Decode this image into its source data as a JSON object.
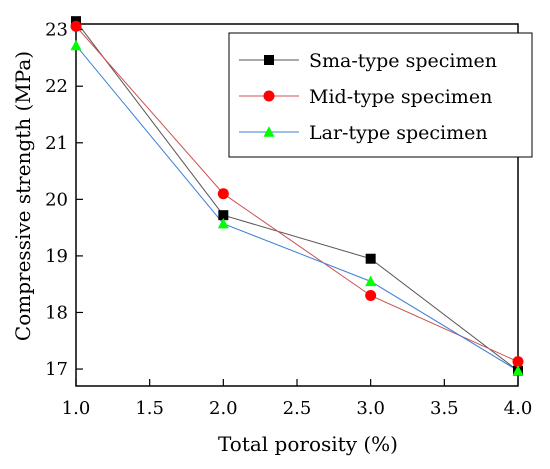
{
  "chart_data": {
    "type": "line",
    "title": "",
    "xlabel": "Total porosity (%)",
    "ylabel": "Compressive strength (MPa)",
    "xlim": [
      1.0,
      4.0
    ],
    "ylim": [
      16.7,
      23.1
    ],
    "xticks": [
      "1.0",
      "1.5",
      "2.0",
      "2.5",
      "3.0",
      "3.5",
      "4.0"
    ],
    "yticks": [
      "17",
      "18",
      "19",
      "20",
      "21",
      "22",
      "23"
    ],
    "x": [
      1.0,
      2.0,
      3.0,
      4.0
    ],
    "grid": false,
    "legend_position": "top-right",
    "series": [
      {
        "name": "Sma-type specimen",
        "values": [
          23.15,
          19.72,
          18.95,
          16.97
        ],
        "marker": "square",
        "color": "#000000",
        "line_color": "#555555"
      },
      {
        "name": "Mid-type specimen",
        "values": [
          23.06,
          20.1,
          18.3,
          17.13
        ],
        "marker": "circle",
        "color": "#ff0000",
        "line_color": "#cc5050"
      },
      {
        "name": "Lar-type specimen",
        "values": [
          22.72,
          19.57,
          18.55,
          16.97
        ],
        "marker": "triangle",
        "color": "#00ff00",
        "line_color": "#3c7fd6"
      }
    ]
  }
}
